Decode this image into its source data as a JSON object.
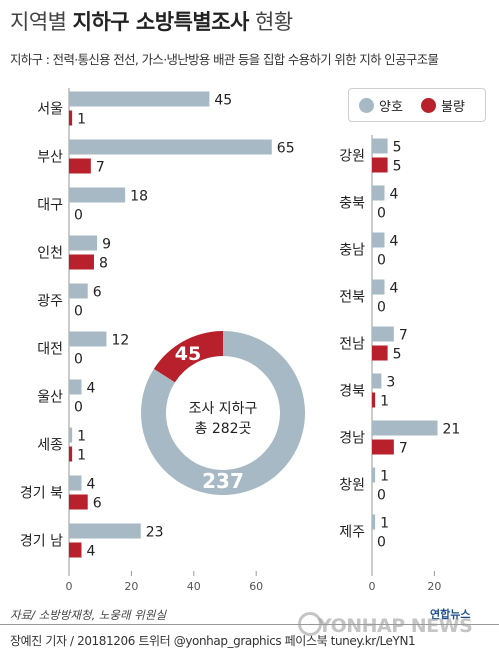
{
  "header": {
    "title_thin_1": "지역별",
    "title_bold": "지하구 소방특별조사",
    "title_thin_2": "현황",
    "subtitle": "지하구 : 전력·통신용 전선, 가스·냉난방용 배관 등을 집합 수용하기 위한 지하 인공구조물"
  },
  "legend": {
    "good_label": "양호",
    "bad_label": "불량"
  },
  "colors": {
    "good": "#a7b9c4",
    "bad": "#b8202b",
    "axis": "#999999"
  },
  "donut": {
    "line1": "조사 지하구",
    "line2": "총 282곳",
    "good_value": 237,
    "bad_value": 45,
    "good_label": "237",
    "bad_label": "45"
  },
  "chart_data": [
    {
      "type": "bar",
      "orientation": "horizontal",
      "categories": [
        "서울",
        "부산",
        "대구",
        "인천",
        "광주",
        "대전",
        "울산",
        "세종",
        "경기 북",
        "경기 남"
      ],
      "series": [
        {
          "name": "양호",
          "values": [
            45,
            65,
            18,
            9,
            6,
            12,
            4,
            1,
            4,
            23
          ]
        },
        {
          "name": "불량",
          "values": [
            1,
            7,
            0,
            8,
            0,
            0,
            0,
            1,
            6,
            4
          ]
        }
      ],
      "xlim": [
        0,
        68
      ],
      "xticks": [
        0,
        20,
        40,
        60
      ]
    },
    {
      "type": "bar",
      "orientation": "horizontal",
      "categories": [
        "강원",
        "충북",
        "충남",
        "전북",
        "전남",
        "경북",
        "경남",
        "창원",
        "제주"
      ],
      "series": [
        {
          "name": "양호",
          "values": [
            5,
            4,
            4,
            4,
            7,
            3,
            21,
            1,
            1
          ]
        },
        {
          "name": "불량",
          "values": [
            5,
            0,
            0,
            0,
            5,
            1,
            7,
            0,
            0
          ]
        }
      ],
      "xlim": [
        0,
        24
      ],
      "xticks": [
        0,
        20
      ]
    },
    {
      "type": "pie",
      "categories": [
        "양호",
        "불량"
      ],
      "values": [
        237,
        45
      ]
    }
  ],
  "footer": {
    "source": "자료/ 소방방재청, 노웅래 위원실",
    "credit": "장예진 기자 / 20181206 트위터 @yonhap_graphics  페이스북 tuney.kr/LeYN1",
    "logo": "연합뉴스",
    "watermark": "YONHAP NEWS"
  }
}
